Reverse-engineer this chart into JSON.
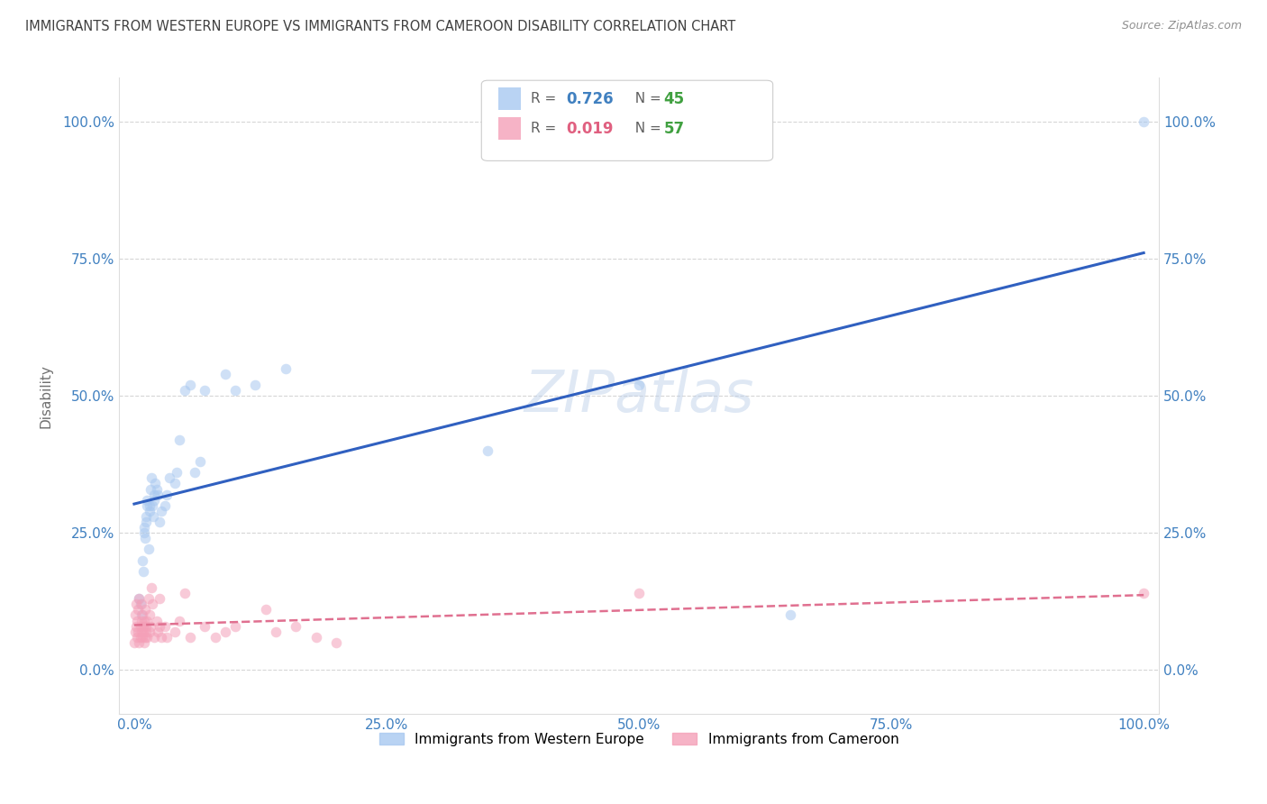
{
  "title": "IMMIGRANTS FROM WESTERN EUROPE VS IMMIGRANTS FROM CAMEROON DISABILITY CORRELATION CHART",
  "source": "Source: ZipAtlas.com",
  "ylabel": "Disability",
  "r_western": 0.726,
  "n_western": 45,
  "r_cameroon": 0.019,
  "n_cameroon": 57,
  "western_color": "#a8c8f0",
  "cameroon_color": "#f4a0b8",
  "western_line_color": "#3060c0",
  "cameroon_line_color": "#e07090",
  "axis_tick_color": "#4080c0",
  "watermark": "ZIPatlas",
  "western_x": [
    0.005,
    0.006,
    0.007,
    0.008,
    0.009,
    0.01,
    0.01,
    0.011,
    0.012,
    0.012,
    0.013,
    0.013,
    0.014,
    0.015,
    0.015,
    0.016,
    0.017,
    0.018,
    0.019,
    0.02,
    0.02,
    0.021,
    0.022,
    0.023,
    0.025,
    0.027,
    0.03,
    0.032,
    0.035,
    0.04,
    0.042,
    0.045,
    0.05,
    0.055,
    0.06,
    0.065,
    0.07,
    0.09,
    0.1,
    0.12,
    0.15,
    0.35,
    0.5,
    0.65,
    1.0
  ],
  "western_y": [
    0.13,
    0.12,
    0.1,
    0.2,
    0.18,
    0.25,
    0.26,
    0.24,
    0.27,
    0.28,
    0.3,
    0.31,
    0.22,
    0.29,
    0.3,
    0.33,
    0.35,
    0.3,
    0.28,
    0.32,
    0.31,
    0.34,
    0.33,
    0.32,
    0.27,
    0.29,
    0.3,
    0.32,
    0.35,
    0.34,
    0.36,
    0.42,
    0.51,
    0.52,
    0.36,
    0.38,
    0.51,
    0.54,
    0.51,
    0.52,
    0.55,
    0.4,
    0.52,
    0.1,
    1.0
  ],
  "cameroon_x": [
    0.0,
    0.001,
    0.001,
    0.002,
    0.002,
    0.003,
    0.003,
    0.004,
    0.004,
    0.005,
    0.005,
    0.006,
    0.006,
    0.007,
    0.007,
    0.007,
    0.008,
    0.008,
    0.009,
    0.009,
    0.01,
    0.01,
    0.011,
    0.011,
    0.012,
    0.012,
    0.013,
    0.013,
    0.014,
    0.015,
    0.015,
    0.016,
    0.017,
    0.018,
    0.02,
    0.022,
    0.023,
    0.025,
    0.025,
    0.027,
    0.03,
    0.032,
    0.04,
    0.045,
    0.05,
    0.055,
    0.07,
    0.08,
    0.09,
    0.1,
    0.13,
    0.14,
    0.16,
    0.18,
    0.2,
    0.5,
    1.0
  ],
  "cameroon_y": [
    0.05,
    0.07,
    0.1,
    0.08,
    0.12,
    0.06,
    0.09,
    0.07,
    0.11,
    0.05,
    0.13,
    0.08,
    0.06,
    0.07,
    0.09,
    0.12,
    0.06,
    0.1,
    0.07,
    0.08,
    0.05,
    0.09,
    0.06,
    0.11,
    0.08,
    0.07,
    0.09,
    0.06,
    0.13,
    0.07,
    0.1,
    0.08,
    0.15,
    0.12,
    0.06,
    0.09,
    0.07,
    0.13,
    0.08,
    0.06,
    0.08,
    0.06,
    0.07,
    0.09,
    0.14,
    0.06,
    0.08,
    0.06,
    0.07,
    0.08,
    0.11,
    0.07,
    0.08,
    0.06,
    0.05,
    0.14,
    0.14
  ],
  "xlim": [
    -0.015,
    1.015
  ],
  "ylim": [
    -0.08,
    1.08
  ],
  "xticks": [
    0.0,
    0.25,
    0.5,
    0.75,
    1.0
  ],
  "yticks": [
    0.0,
    0.25,
    0.5,
    0.75,
    1.0
  ],
  "xticklabels": [
    "0.0%",
    "25.0%",
    "50.0%",
    "75.0%",
    "100.0%"
  ],
  "yticklabels": [
    "0.0%",
    "25.0%",
    "50.0%",
    "75.0%",
    "100.0%"
  ],
  "marker_size": 70,
  "marker_alpha": 0.55
}
